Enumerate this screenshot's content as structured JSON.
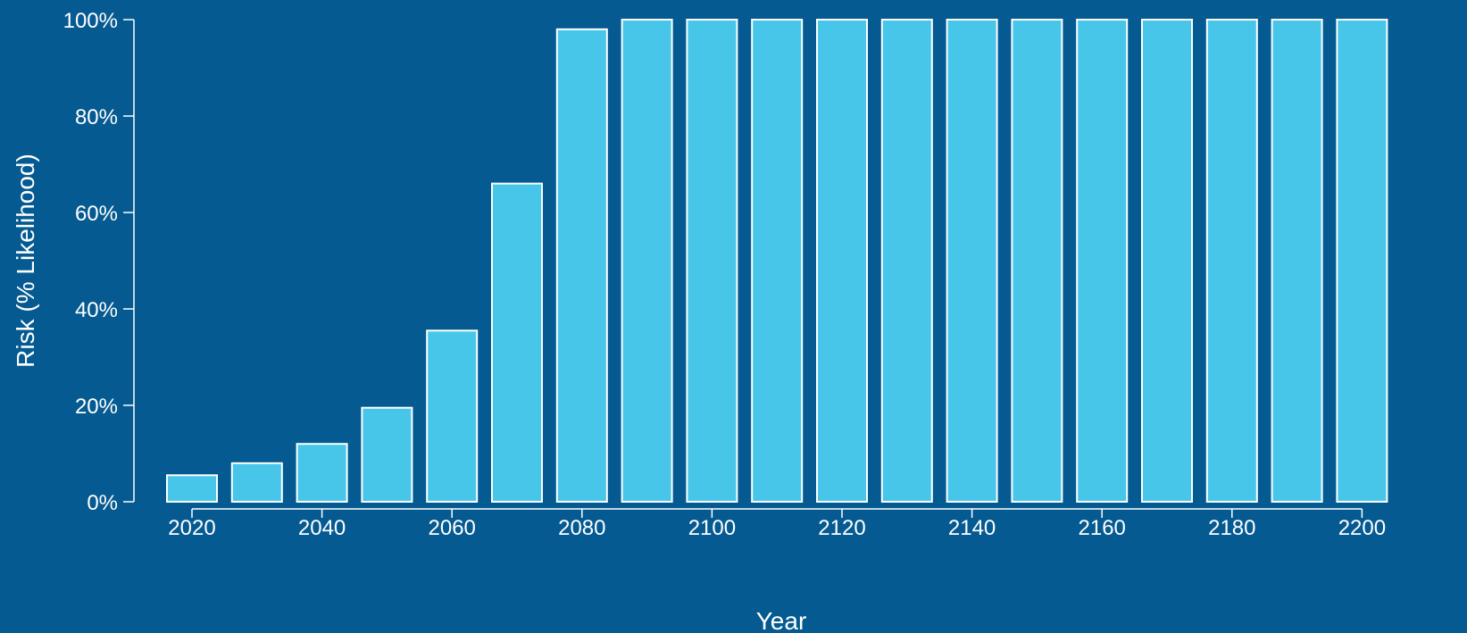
{
  "chart_data": {
    "type": "bar",
    "xlabel": "Year",
    "ylabel": "Risk (% Likelihood)",
    "categories": [
      2020,
      2030,
      2040,
      2050,
      2060,
      2070,
      2080,
      2090,
      2100,
      2110,
      2120,
      2130,
      2140,
      2150,
      2160,
      2170,
      2180,
      2190,
      2200
    ],
    "values": [
      5.5,
      8,
      12,
      19.5,
      35.5,
      66,
      98,
      100,
      100,
      100,
      100,
      100,
      100,
      100,
      100,
      100,
      100,
      100,
      100
    ],
    "ylim": [
      0,
      100
    ],
    "y_ticks": [
      0,
      20,
      40,
      60,
      80,
      100
    ],
    "y_tick_labels": [
      "0%",
      "20%",
      "40%",
      "60%",
      "80%",
      "100%"
    ],
    "x_ticks": [
      2020,
      2040,
      2060,
      2080,
      2100,
      2120,
      2140,
      2160,
      2180,
      2200
    ],
    "x_tick_labels": [
      "2020",
      "2040",
      "2060",
      "2080",
      "2100",
      "2120",
      "2140",
      "2160",
      "2180",
      "2200"
    ],
    "grid": false,
    "legend": "none"
  },
  "colors": {
    "background": "#045A91",
    "bar_fill": "#47C6EA",
    "bar_stroke": "#FFFFFF",
    "text": "#FFFFFF"
  }
}
